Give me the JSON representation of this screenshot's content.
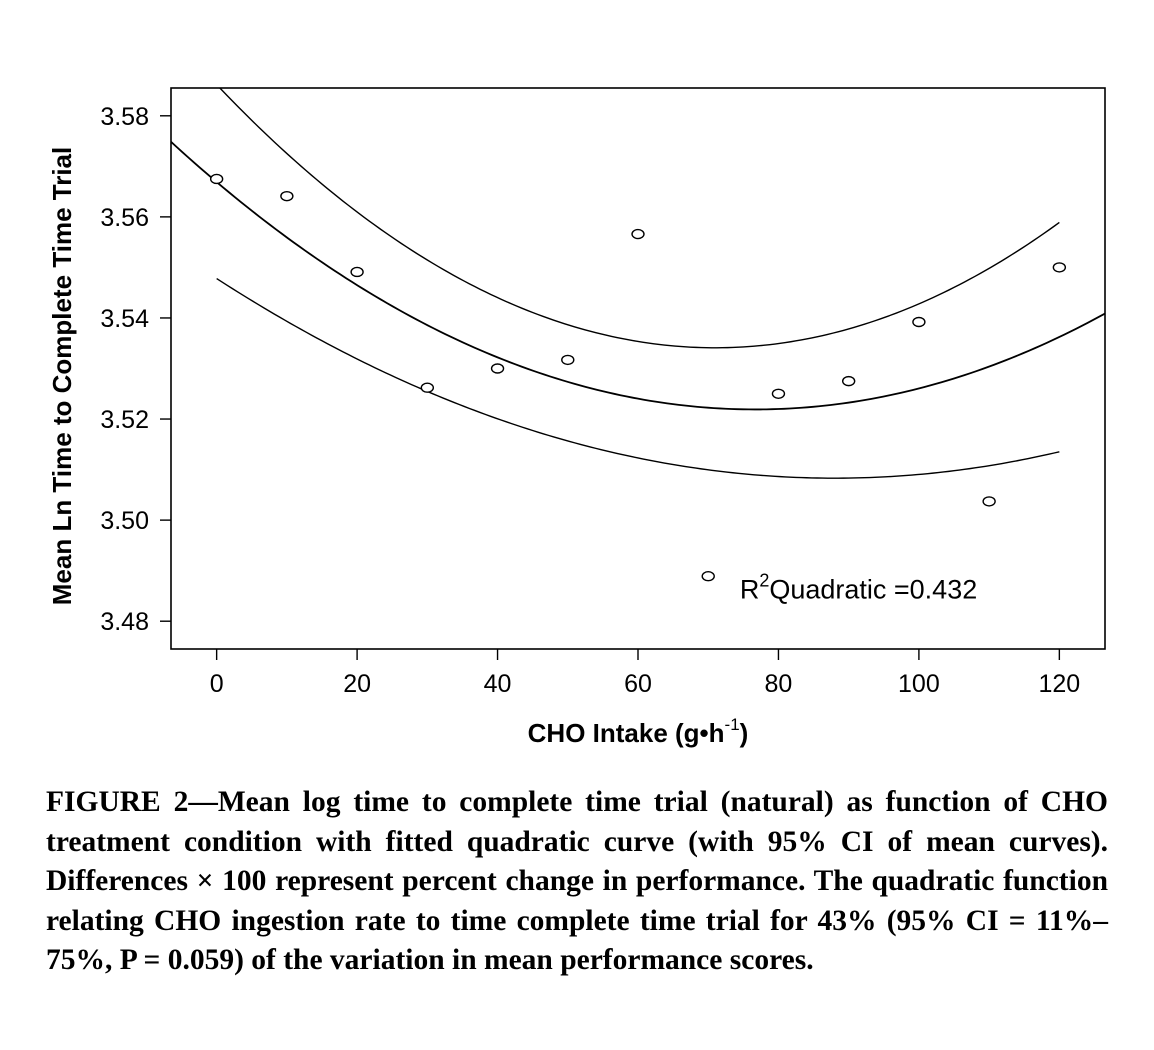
{
  "chart_data": {
    "type": "scatter",
    "xlabel_main": "CHO Intake (g•h",
    "xlabel_sup": "-1",
    "xlabel_tail": ")",
    "ylabel": "Mean Ln Time to Complete Time Trial",
    "xlim": [
      -6.5,
      126.5
    ],
    "ylim": [
      3.4745,
      3.5855
    ],
    "x_ticks": [
      0,
      20,
      40,
      60,
      80,
      100,
      120
    ],
    "y_ticks": [
      3.48,
      3.5,
      3.52,
      3.54,
      3.56,
      3.58
    ],
    "y_tick_labels": [
      "3.48",
      "3.50",
      "3.52",
      "3.54",
      "3.56",
      "3.58"
    ],
    "grid": false,
    "points": {
      "x": [
        0,
        10,
        20,
        30,
        40,
        50,
        60,
        70,
        80,
        90,
        100,
        110,
        120
      ],
      "y": [
        3.5675,
        3.5641,
        3.5491,
        3.5262,
        3.53,
        3.5317,
        3.5566,
        3.4889,
        3.525,
        3.5275,
        3.5392,
        3.5037,
        3.55
      ]
    },
    "fit": {
      "name": "Quadratic",
      "x_vertex": 76.7,
      "y_vertex": 3.5219,
      "y_at_0": 3.5669
    },
    "ci_upper": {
      "x_vertex": 71.0,
      "y_vertex": 3.5341,
      "y_at_120": 3.5589,
      "x_range": [
        0,
        120
      ]
    },
    "ci_lower": {
      "x_vertex": 88.0,
      "y_vertex": 3.5083,
      "y_at_0": 3.5478,
      "x_range": [
        0,
        120
      ]
    },
    "annotation": {
      "r_text": "R",
      "sup": "2",
      "rest": "Quadratic =0.432",
      "at_x": 74.5,
      "at_y": 3.4845
    }
  },
  "caption": {
    "label": "FIGURE 2",
    "text": "—Mean log time to complete time trial (natural) as function of CHO treatment condition with fitted quadratic curve (with 95% CI of mean curves). Differences × 100 represent percent change in performance. The quadratic function relating CHO ingestion rate to time complete time trial for 43% (95% CI = 11%–75%, P = 0.059) of the variation in mean performance scores."
  }
}
